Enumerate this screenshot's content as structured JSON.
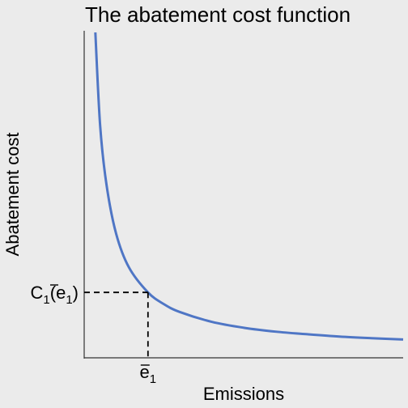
{
  "chart_data": {
    "type": "line",
    "title": "The abatement cost function",
    "xlabel": "Emissions",
    "ylabel": "Abatement cost",
    "xlim": [
      0,
      10
    ],
    "ylim": [
      0,
      10
    ],
    "grid": false,
    "series": [
      {
        "color": "#4f76c5",
        "x": [
          0.35,
          0.5,
          0.7,
          1.0,
          1.4,
          2.0,
          2.5,
          3.0,
          4.0,
          5.0,
          6.0,
          7.0,
          8.0,
          9.0,
          10.0
        ],
        "y": [
          9.95,
          7.1,
          5.29,
          3.8,
          2.77,
          2.0,
          1.64,
          1.4,
          1.1,
          0.92,
          0.8,
          0.72,
          0.65,
          0.6,
          0.56
        ]
      }
    ],
    "reference": {
      "x": 2.0,
      "y": 2.0,
      "x_tick": {
        "base": "e",
        "sub": "1"
      },
      "y_tick": {
        "base": "C",
        "sub": "1",
        "arg_base": "e",
        "arg_sub": "1"
      }
    }
  }
}
